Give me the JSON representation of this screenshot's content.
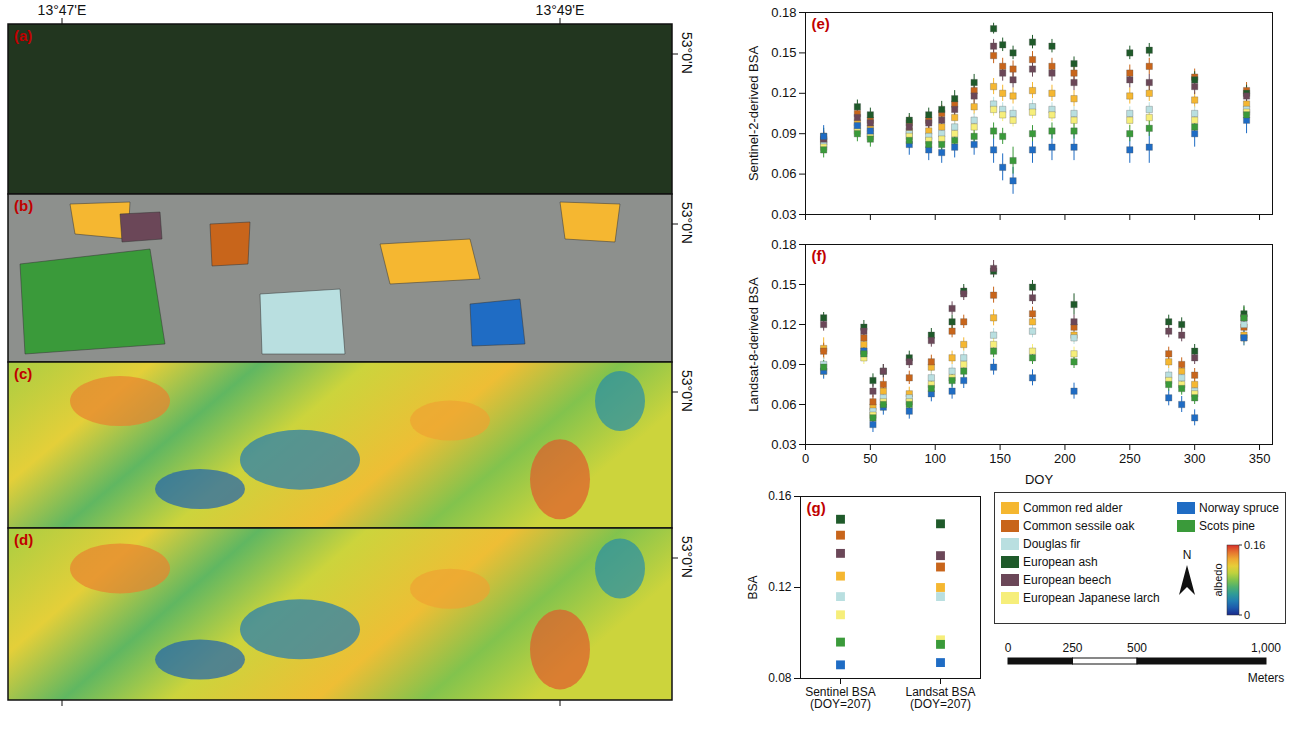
{
  "chart_data": [
    {
      "type": "scatter",
      "title": "(e)",
      "y_label": "Sentinel-2-derived BSA",
      "tick_labels": "y",
      "marker": "square",
      "x": [
        14,
        40,
        50,
        80,
        95,
        105,
        115,
        130,
        145,
        152,
        160,
        175,
        190,
        207,
        250,
        265,
        300,
        340
      ],
      "xlim": [
        0,
        360
      ],
      "xticks": [
        0,
        50,
        100,
        150,
        200,
        250,
        300,
        350
      ],
      "ylim": [
        0.03,
        0.18
      ],
      "yticks": [
        0.03,
        0.06,
        0.09,
        0.12,
        0.15,
        0.18
      ],
      "series": [
        {
          "name": "Common red alder",
          "color": "#f5b731",
          "values": [
            0.084,
            0.098,
            0.094,
            0.092,
            0.092,
            0.095,
            0.102,
            0.11,
            0.125,
            0.12,
            0.118,
            0.122,
            0.12,
            0.116,
            0.118,
            0.12,
            0.115,
            0.112
          ],
          "errors": [
            0.006,
            0.005,
            0.005,
            0.005,
            0.006,
            0.006,
            0.006,
            0.006,
            0.006,
            0.006,
            0.006,
            0.006,
            0.006,
            0.006,
            0.006,
            0.006,
            0.006,
            0.006
          ]
        },
        {
          "name": "Common sessile oak",
          "color": "#c8651b",
          "values": [
            0.085,
            0.105,
            0.1,
            0.098,
            0.1,
            0.105,
            0.112,
            0.122,
            0.148,
            0.14,
            0.138,
            0.145,
            0.14,
            0.135,
            0.135,
            0.14,
            0.132,
            0.122
          ],
          "errors": [
            0.006,
            0.005,
            0.005,
            0.005,
            0.006,
            0.006,
            0.006,
            0.006,
            0.006,
            0.006,
            0.006,
            0.006,
            0.006,
            0.006,
            0.006,
            0.006,
            0.006,
            0.006
          ]
        },
        {
          "name": "Douglas fir",
          "color": "#b9dfe0",
          "values": [
            0.082,
            0.095,
            0.09,
            0.09,
            0.088,
            0.09,
            0.095,
            0.1,
            0.112,
            0.108,
            0.105,
            0.11,
            0.108,
            0.105,
            0.105,
            0.108,
            0.105,
            0.108
          ],
          "errors": [
            0.005,
            0.005,
            0.005,
            0.005,
            0.005,
            0.005,
            0.005,
            0.005,
            0.005,
            0.005,
            0.005,
            0.005,
            0.005,
            0.005,
            0.005,
            0.005,
            0.005,
            0.005
          ]
        },
        {
          "name": "European ash",
          "color": "#1f5a2a",
          "values": [
            0.088,
            0.11,
            0.104,
            0.1,
            0.104,
            0.108,
            0.116,
            0.128,
            0.168,
            0.156,
            0.15,
            0.158,
            0.155,
            0.142,
            0.15,
            0.152,
            0.13,
            0.12
          ],
          "errors": [
            0.006,
            0.005,
            0.005,
            0.005,
            0.005,
            0.006,
            0.006,
            0.006,
            0.004,
            0.005,
            0.005,
            0.005,
            0.005,
            0.005,
            0.005,
            0.005,
            0.006,
            0.006
          ]
        },
        {
          "name": "European beech",
          "color": "#6b4758",
          "values": [
            0.086,
            0.102,
            0.098,
            0.095,
            0.098,
            0.1,
            0.108,
            0.118,
            0.155,
            0.135,
            0.13,
            0.138,
            0.135,
            0.128,
            0.13,
            0.128,
            0.125,
            0.118
          ],
          "errors": [
            0.006,
            0.005,
            0.005,
            0.005,
            0.006,
            0.006,
            0.006,
            0.006,
            0.005,
            0.006,
            0.006,
            0.006,
            0.006,
            0.006,
            0.006,
            0.006,
            0.006,
            0.006
          ]
        },
        {
          "name": "European Japanese larch",
          "color": "#f6ee7a",
          "values": [
            0.08,
            0.092,
            0.088,
            0.088,
            0.085,
            0.086,
            0.09,
            0.095,
            0.108,
            0.104,
            0.1,
            0.106,
            0.104,
            0.1,
            0.1,
            0.102,
            0.1,
            0.106
          ],
          "errors": [
            0.005,
            0.005,
            0.005,
            0.005,
            0.005,
            0.005,
            0.005,
            0.005,
            0.005,
            0.005,
            0.005,
            0.005,
            0.005,
            0.005,
            0.005,
            0.005,
            0.005,
            0.005
          ]
        },
        {
          "name": "Norway spruce",
          "color": "#1f6cc4",
          "values": [
            0.088,
            0.096,
            0.092,
            0.082,
            0.078,
            0.076,
            0.08,
            0.082,
            0.078,
            0.065,
            0.055,
            0.078,
            0.08,
            0.08,
            0.078,
            0.08,
            0.09,
            0.1
          ],
          "errors": [
            0.008,
            0.008,
            0.008,
            0.008,
            0.008,
            0.008,
            0.008,
            0.008,
            0.01,
            0.01,
            0.01,
            0.01,
            0.01,
            0.01,
            0.01,
            0.012,
            0.01,
            0.01
          ]
        },
        {
          "name": "Scots pine",
          "color": "#3a9a3a",
          "values": [
            0.078,
            0.09,
            0.086,
            0.085,
            0.082,
            0.082,
            0.085,
            0.088,
            0.092,
            0.088,
            0.07,
            0.09,
            0.092,
            0.092,
            0.09,
            0.094,
            0.095,
            0.104
          ],
          "errors": [
            0.006,
            0.006,
            0.006,
            0.006,
            0.006,
            0.006,
            0.006,
            0.006,
            0.006,
            0.006,
            0.01,
            0.006,
            0.006,
            0.006,
            0.006,
            0.006,
            0.006,
            0.006
          ]
        }
      ]
    },
    {
      "type": "scatter",
      "title": "(f)",
      "x_label": "DOY",
      "y_label": "Landsat-8-derived BSA",
      "marker": "square",
      "x": [
        14,
        45,
        52,
        60,
        80,
        97,
        113,
        122,
        145,
        175,
        207,
        280,
        290,
        300,
        338
      ],
      "xlim": [
        0,
        360
      ],
      "xticks": [
        0,
        50,
        100,
        150,
        200,
        250,
        300,
        350
      ],
      "ylim": [
        0.03,
        0.18
      ],
      "yticks": [
        0.03,
        0.06,
        0.09,
        0.12,
        0.15,
        0.18
      ],
      "series": [
        {
          "name": "Common red alder",
          "color": "#f5b731",
          "values": [
            0.102,
            0.105,
            0.058,
            0.07,
            0.068,
            0.088,
            0.095,
            0.105,
            0.125,
            0.122,
            0.112,
            0.092,
            0.085,
            0.075,
            0.112
          ],
          "errors": [
            0.008,
            0.005,
            0.005,
            0.005,
            0.005,
            0.005,
            0.005,
            0.005,
            0.006,
            0.005,
            0.005,
            0.005,
            0.005,
            0.005,
            0.006
          ]
        },
        {
          "name": "Common sessile oak",
          "color": "#c8651b",
          "values": [
            0.1,
            0.11,
            0.062,
            0.075,
            0.08,
            0.092,
            0.115,
            0.122,
            0.142,
            0.128,
            0.118,
            0.098,
            0.09,
            0.082,
            0.118
          ],
          "errors": [
            0.006,
            0.005,
            0.005,
            0.005,
            0.005,
            0.005,
            0.005,
            0.005,
            0.006,
            0.005,
            0.005,
            0.005,
            0.005,
            0.005,
            0.006
          ]
        },
        {
          "name": "Douglas fir",
          "color": "#b9dfe0",
          "values": [
            0.09,
            0.1,
            0.055,
            0.065,
            0.065,
            0.08,
            0.085,
            0.095,
            0.112,
            0.115,
            0.11,
            0.082,
            0.08,
            0.07,
            0.12
          ],
          "errors": [
            0.005,
            0.005,
            0.005,
            0.005,
            0.005,
            0.005,
            0.005,
            0.005,
            0.005,
            0.005,
            0.005,
            0.005,
            0.005,
            0.005,
            0.006
          ]
        },
        {
          "name": "European ash",
          "color": "#1f5a2a",
          "values": [
            0.125,
            0.118,
            0.078,
            0.085,
            0.095,
            0.112,
            0.122,
            0.145,
            0.16,
            0.148,
            0.135,
            0.122,
            0.12,
            0.1,
            0.128
          ],
          "errors": [
            0.004,
            0.005,
            0.005,
            0.005,
            0.005,
            0.005,
            0.005,
            0.005,
            0.005,
            0.005,
            0.008,
            0.005,
            0.005,
            0.005,
            0.006
          ]
        },
        {
          "name": "European beech",
          "color": "#6b4758",
          "values": [
            0.12,
            0.115,
            0.07,
            0.085,
            0.092,
            0.108,
            0.132,
            0.143,
            0.162,
            0.14,
            0.122,
            0.115,
            0.112,
            0.095,
            0.125
          ],
          "errors": [
            0.005,
            0.005,
            0.005,
            0.005,
            0.005,
            0.005,
            0.005,
            0.005,
            0.006,
            0.005,
            0.005,
            0.005,
            0.005,
            0.005,
            0.006
          ]
        },
        {
          "name": "European Japanese larch",
          "color": "#f6ee7a",
          "values": [
            0.085,
            0.095,
            0.052,
            0.062,
            0.062,
            0.075,
            0.08,
            0.09,
            0.105,
            0.1,
            0.098,
            0.078,
            0.075,
            0.068,
            0.11
          ],
          "errors": [
            0.005,
            0.005,
            0.005,
            0.005,
            0.005,
            0.005,
            0.005,
            0.005,
            0.005,
            0.005,
            0.005,
            0.005,
            0.005,
            0.005,
            0.006
          ]
        },
        {
          "name": "Norway spruce",
          "color": "#1f6cc4",
          "values": [
            0.085,
            0.1,
            0.045,
            0.058,
            0.055,
            0.068,
            0.07,
            0.078,
            0.088,
            0.08,
            0.07,
            0.065,
            0.06,
            0.05,
            0.11
          ],
          "errors": [
            0.006,
            0.006,
            0.006,
            0.006,
            0.006,
            0.006,
            0.006,
            0.006,
            0.006,
            0.006,
            0.006,
            0.006,
            0.006,
            0.006,
            0.006
          ]
        },
        {
          "name": "Scots pine",
          "color": "#3a9a3a",
          "values": [
            0.088,
            0.098,
            0.05,
            0.06,
            0.06,
            0.072,
            0.078,
            0.085,
            0.1,
            0.095,
            0.092,
            0.075,
            0.072,
            0.065,
            0.125
          ],
          "errors": [
            0.005,
            0.005,
            0.005,
            0.005,
            0.005,
            0.005,
            0.005,
            0.005,
            0.005,
            0.005,
            0.005,
            0.005,
            0.005,
            0.005,
            0.008
          ]
        }
      ]
    },
    {
      "type": "scatter",
      "title": "(g)",
      "y_label": "BSA",
      "marker": "square",
      "legend": "right",
      "categories": [
        "Sentinel BSA\n(DOY=207)",
        "Landsat BSA\n(DOY=207)"
      ],
      "ylim": [
        0.08,
        0.16
      ],
      "yticks": [
        0.08,
        0.12,
        0.16
      ],
      "series": [
        {
          "name": "Common red alder",
          "color": "#f5b731",
          "values": [
            0.125,
            0.12
          ]
        },
        {
          "name": "Common sessile oak",
          "color": "#c8651b",
          "values": [
            0.143,
            0.129
          ]
        },
        {
          "name": "Douglas fir",
          "color": "#b9dfe0",
          "values": [
            0.116,
            0.116
          ]
        },
        {
          "name": "European ash",
          "color": "#1f5a2a",
          "values": [
            0.15,
            0.148
          ]
        },
        {
          "name": "European beech",
          "color": "#6b4758",
          "values": [
            0.135,
            0.134
          ]
        },
        {
          "name": "European Japanese larch",
          "color": "#f6ee7a",
          "values": [
            0.108,
            0.097
          ]
        },
        {
          "name": "Norway spruce",
          "color": "#1f6cc4",
          "values": [
            0.086,
            0.087
          ]
        },
        {
          "name": "Scots pine",
          "color": "#3a9a3a",
          "values": [
            0.096,
            0.095
          ]
        }
      ]
    }
  ],
  "maps": {
    "panels": [
      "(a)",
      "(b)",
      "(c)",
      "(d)"
    ],
    "lon_labels": [
      "13°47'E",
      "13°49'E"
    ],
    "lat_labels": [
      "53°0'N",
      "53°0'N",
      "53°0'N",
      "53°0'N"
    ]
  },
  "colorbar": {
    "label": "albedo",
    "range": [
      0,
      0.16
    ],
    "ticks": [
      0,
      0.16
    ]
  },
  "north": "N",
  "scale_bar": {
    "range": [
      0,
      1000
    ],
    "ticks": [
      0,
      250,
      500,
      {
        "value": 1000,
        "label": "1,000"
      }
    ],
    "unit": "Meters"
  }
}
